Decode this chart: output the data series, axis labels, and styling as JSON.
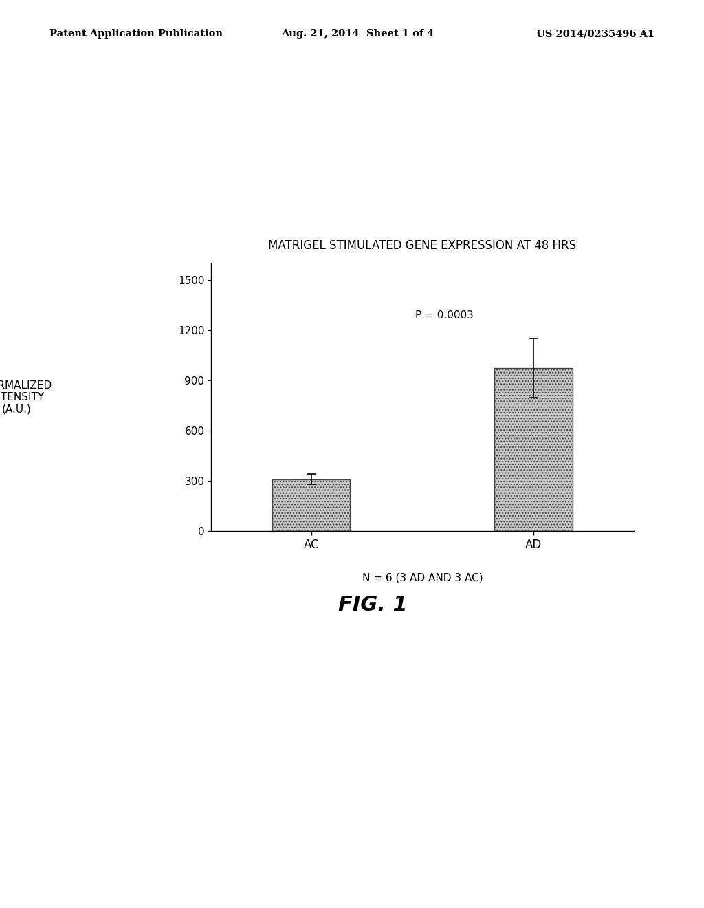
{
  "title": "MATRIGEL STIMULATED GENE EXPRESSION AT 48 HRS",
  "categories": [
    "AC",
    "AD"
  ],
  "values": [
    310,
    975
  ],
  "errors": [
    30,
    175
  ],
  "ylabel_line1": "NORMALIZED",
  "ylabel_line2": "INTENSITY",
  "ylabel_line3": "(A.U.)",
  "xlabel_note": "N = 6 (3 AD AND 3 AC)",
  "p_value_text": "P = 0.0003",
  "ylim": [
    0,
    1600
  ],
  "yticks": [
    0,
    300,
    600,
    900,
    1200,
    1500
  ],
  "bar_color": "#c8c8c8",
  "bar_edgecolor": "#444444",
  "bar_width": 0.35,
  "bar_hatch": "....",
  "fig_label": "FIG. 1",
  "patent_left": "Patent Application Publication",
  "patent_mid": "Aug. 21, 2014  Sheet 1 of 4",
  "patent_right": "US 2014/0235496 A1",
  "background_color": "#ffffff"
}
